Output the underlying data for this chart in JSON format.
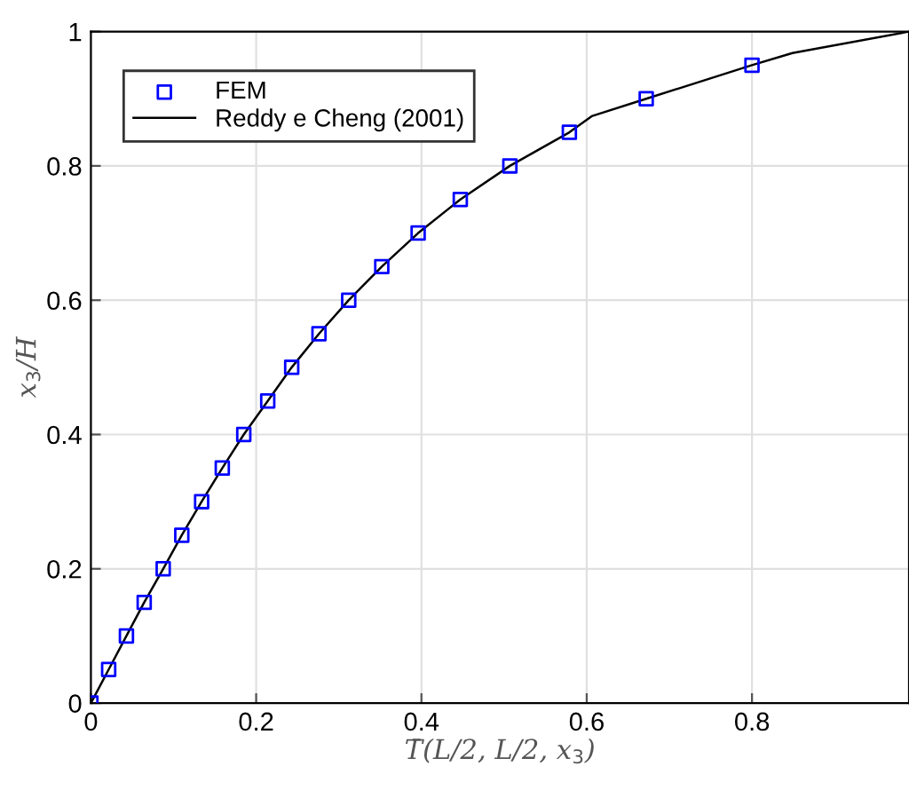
{
  "chart_data": {
    "type": "line",
    "xlabel": "T̄(L/2, L/2, x$_{3}$)",
    "ylabel": "x$_{3}$/H",
    "xlim": [
      0,
      0.99
    ],
    "ylim": [
      0,
      1
    ],
    "xticks": [
      0,
      0.2,
      0.4,
      0.6,
      0.8
    ],
    "yticks": [
      0,
      0.2,
      0.4,
      0.6,
      0.8,
      1
    ],
    "grid": true,
    "legend": "top left",
    "series": [
      {
        "name": "FEM",
        "type": "scatter",
        "marker": "square",
        "color": "#0000ff",
        "x": [
          0,
          0.0215,
          0.043,
          0.0645,
          0.0875,
          0.11,
          0.134,
          0.159,
          0.185,
          0.214,
          0.243,
          0.276,
          0.312,
          0.352,
          0.396,
          0.447,
          0.507,
          0.579,
          0.672,
          0.8
        ],
        "values": [
          0,
          0.05,
          0.1,
          0.15,
          0.2,
          0.25,
          0.3,
          0.35,
          0.4,
          0.45,
          0.5,
          0.55,
          0.6,
          0.65,
          0.7,
          0.75,
          0.8,
          0.85,
          0.9,
          0.95
        ]
      },
      {
        "name": "Reddy e Cheng (2001)",
        "line_style": "solid",
        "color": "#000000",
        "x": [
          0,
          0.0215,
          0.043,
          0.0645,
          0.0875,
          0.11,
          0.134,
          0.159,
          0.185,
          0.214,
          0.243,
          0.276,
          0.312,
          0.352,
          0.396,
          0.447,
          0.507,
          0.579,
          0.606,
          0.672,
          0.8,
          0.849,
          0.99
        ],
        "values": [
          0,
          0.05,
          0.1,
          0.15,
          0.2,
          0.25,
          0.3,
          0.35,
          0.4,
          0.45,
          0.5,
          0.55,
          0.6,
          0.65,
          0.7,
          0.75,
          0.8,
          0.85,
          0.874,
          0.9,
          0.95,
          0.968,
          1
        ]
      }
    ]
  }
}
